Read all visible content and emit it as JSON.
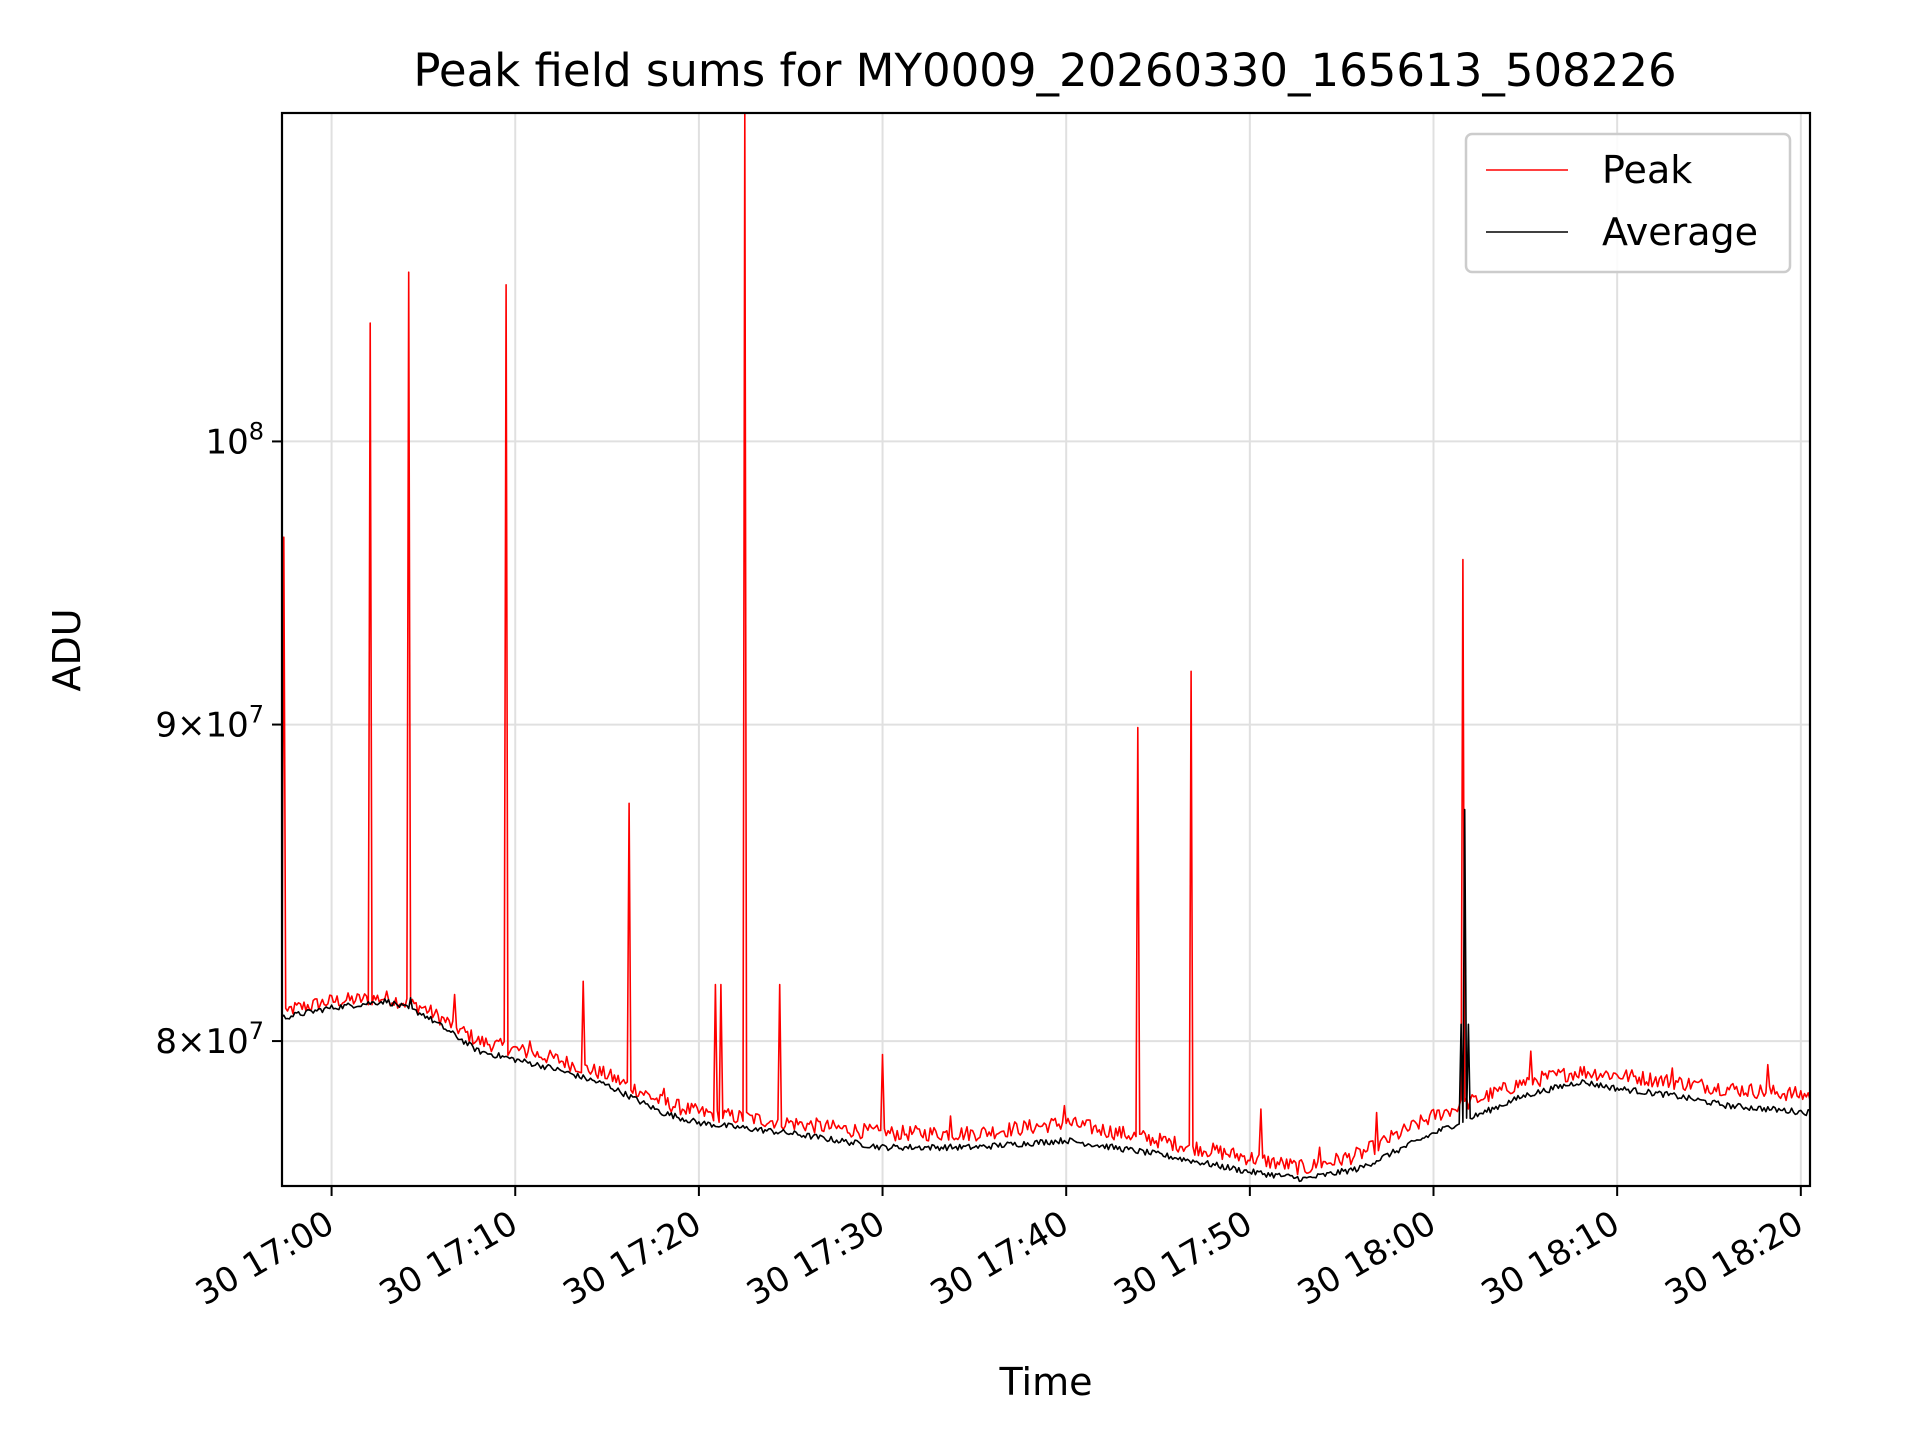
{
  "chart_data": {
    "type": "line",
    "title": "Peak field sums for MY0009_20260330_165613_508226",
    "xlabel": "Time",
    "ylabel": "ADU",
    "y_scale": "log",
    "xlim_minutes_from_1700": [
      -2.7,
      80.5
    ],
    "ylim": [
      75800000,
      113000000
    ],
    "x_ticks": [
      {
        "minute": 0,
        "label": "30 17:00"
      },
      {
        "minute": 10,
        "label": "30 17:10"
      },
      {
        "minute": 20,
        "label": "30 17:20"
      },
      {
        "minute": 30,
        "label": "30 17:30"
      },
      {
        "minute": 40,
        "label": "30 17:40"
      },
      {
        "minute": 50,
        "label": "30 17:50"
      },
      {
        "minute": 60,
        "label": "30 18:00"
      },
      {
        "minute": 70,
        "label": "30 18:10"
      },
      {
        "minute": 80,
        "label": "30 18:20"
      }
    ],
    "y_ticks": [
      {
        "value": 80000000,
        "mantissa": "8",
        "exponent": "7"
      },
      {
        "value": 90000000,
        "mantissa": "9",
        "exponent": "7"
      },
      {
        "value": 100000000,
        "mantissa": "",
        "exponent": "8"
      }
    ],
    "legend": {
      "position": "upper-right",
      "entries": [
        "Peak",
        "Average"
      ]
    },
    "series": [
      {
        "name": "Peak",
        "color": "#ff0000",
        "baseline": [
          [
            -2.7,
            80.9
          ],
          [
            0,
            81.2
          ],
          [
            3,
            81.3
          ],
          [
            5,
            81.0
          ],
          [
            8,
            80.0
          ],
          [
            12,
            79.5
          ],
          [
            15,
            79.0
          ],
          [
            18,
            78.2
          ],
          [
            20,
            77.9
          ],
          [
            25,
            77.6
          ],
          [
            30,
            77.3
          ],
          [
            35,
            77.3
          ],
          [
            40,
            77.6
          ],
          [
            45,
            77.1
          ],
          [
            50,
            76.6
          ],
          [
            53,
            76.3
          ],
          [
            56,
            76.7
          ],
          [
            60,
            77.8
          ],
          [
            65,
            78.8
          ],
          [
            68,
            79.1
          ],
          [
            70,
            79.0
          ],
          [
            73,
            78.8
          ],
          [
            76,
            78.6
          ],
          [
            80.5,
            78.4
          ]
        ],
        "spikes": [
          [
            -2.6,
            96.5
          ],
          [
            -2.4,
            80.9
          ],
          [
            2.1,
            104.5
          ],
          [
            4.2,
            106.5
          ],
          [
            6.7,
            81.4
          ],
          [
            9.5,
            106.0
          ],
          [
            10.8,
            80.0
          ],
          [
            13.7,
            81.8
          ],
          [
            16.2,
            87.4
          ],
          [
            18.1,
            78.6
          ],
          [
            20.9,
            81.7
          ],
          [
            21.2,
            81.7
          ],
          [
            22.5,
            113.0
          ],
          [
            24.4,
            81.7
          ],
          [
            30.0,
            79.6
          ],
          [
            33.7,
            77.8
          ],
          [
            39.9,
            78.1
          ],
          [
            43.9,
            89.9
          ],
          [
            46.8,
            91.8
          ],
          [
            50.6,
            78.0
          ],
          [
            53.8,
            76.9
          ],
          [
            56.9,
            77.9
          ],
          [
            61.6,
            95.7
          ],
          [
            65.3,
            79.7
          ],
          [
            73.0,
            79.2
          ],
          [
            78.2,
            79.3
          ]
        ]
      },
      {
        "name": "Average",
        "color": "#000000",
        "baseline": [
          [
            -2.7,
            80.7
          ],
          [
            0,
            81.0
          ],
          [
            3,
            81.2
          ],
          [
            5,
            80.8
          ],
          [
            8,
            79.7
          ],
          [
            12,
            79.2
          ],
          [
            15,
            78.7
          ],
          [
            18,
            77.9
          ],
          [
            20,
            77.6
          ],
          [
            25,
            77.3
          ],
          [
            30,
            76.9
          ],
          [
            35,
            76.9
          ],
          [
            40,
            77.1
          ],
          [
            45,
            76.7
          ],
          [
            50,
            76.2
          ],
          [
            53,
            76.0
          ],
          [
            56,
            76.3
          ],
          [
            60,
            77.3
          ],
          [
            65,
            78.4
          ],
          [
            68,
            78.8
          ],
          [
            70,
            78.6
          ],
          [
            73,
            78.4
          ],
          [
            76,
            78.1
          ],
          [
            80.5,
            77.9
          ]
        ],
        "spikes": [
          [
            4.3,
            81.3
          ],
          [
            61.5,
            80.5
          ],
          [
            61.7,
            87.2
          ],
          [
            61.9,
            80.5
          ]
        ]
      }
    ]
  }
}
